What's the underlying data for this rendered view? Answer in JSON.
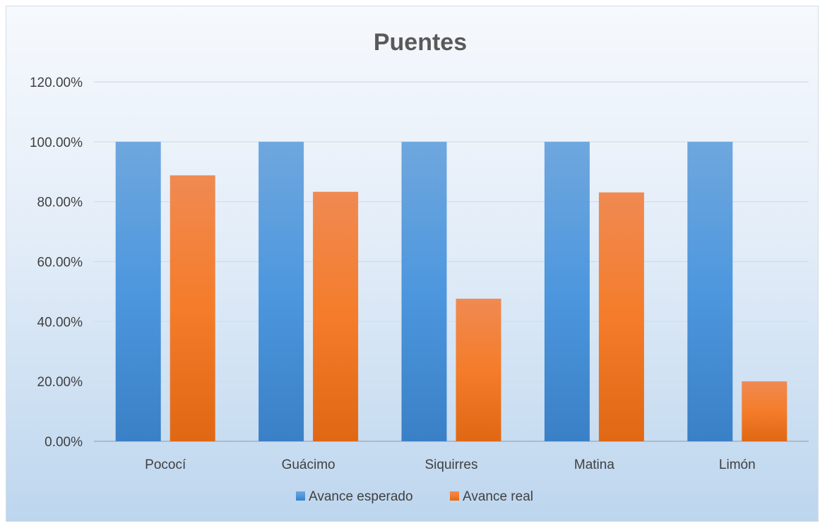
{
  "chart_data": {
    "type": "bar",
    "title": "Puentes",
    "categories": [
      "Pococí",
      "Guácimo",
      "Siquirres",
      "Matina",
      "Limón"
    ],
    "series": [
      {
        "name": "Avance esperado",
        "values": [
          100,
          100,
          100,
          100,
          100
        ],
        "color": "#4a90d9"
      },
      {
        "name": "Avance real",
        "values": [
          88.8,
          83.3,
          47.6,
          83.1,
          20.0
        ],
        "color": "#f07f2f"
      }
    ],
    "ylim": [
      0,
      120
    ],
    "yticks": [
      "0.00%",
      "20.00%",
      "40.00%",
      "60.00%",
      "80.00%",
      "100.00%",
      "120.00%"
    ],
    "ytick_values": [
      0,
      20,
      40,
      60,
      80,
      100,
      120
    ],
    "grid": true,
    "legend": "bottom"
  }
}
